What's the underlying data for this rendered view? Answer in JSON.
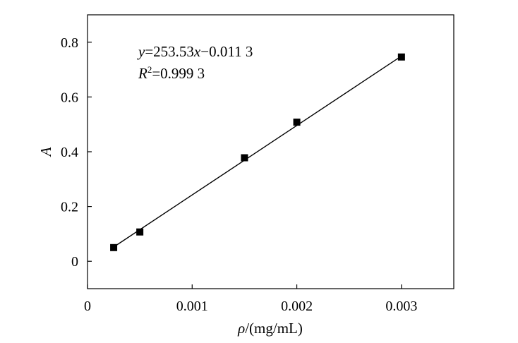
{
  "chart_data": {
    "type": "scatter",
    "x": [
      0.00025,
      0.0005,
      0.0015,
      0.002,
      0.003
    ],
    "y": [
      0.05,
      0.107,
      0.378,
      0.508,
      0.746
    ],
    "fit": {
      "slope": 253.53,
      "intercept": -0.0113
    },
    "xlim": [
      0,
      0.0035
    ],
    "ylim": [
      -0.1,
      0.9
    ],
    "xticks": [
      "0",
      "0.001",
      "0.002",
      "0.003"
    ],
    "yticks": [
      "0",
      "0.2",
      "0.4",
      "0.6",
      "0.8"
    ],
    "xlabel": {
      "symbol": "ρ",
      "unit": "/(mg/mL)"
    },
    "ylabel": "A",
    "annotations": {
      "equation": {
        "y_var": "y",
        "eq_part1": "=253.53",
        "x_var": "x",
        "eq_part2": "−0.011 3"
      },
      "r2": {
        "R": "R",
        "sup": "2",
        "value": "=0.999 3"
      }
    },
    "marker_color": "#000000",
    "line_color": "#000000",
    "grid": false,
    "legend": "none"
  }
}
